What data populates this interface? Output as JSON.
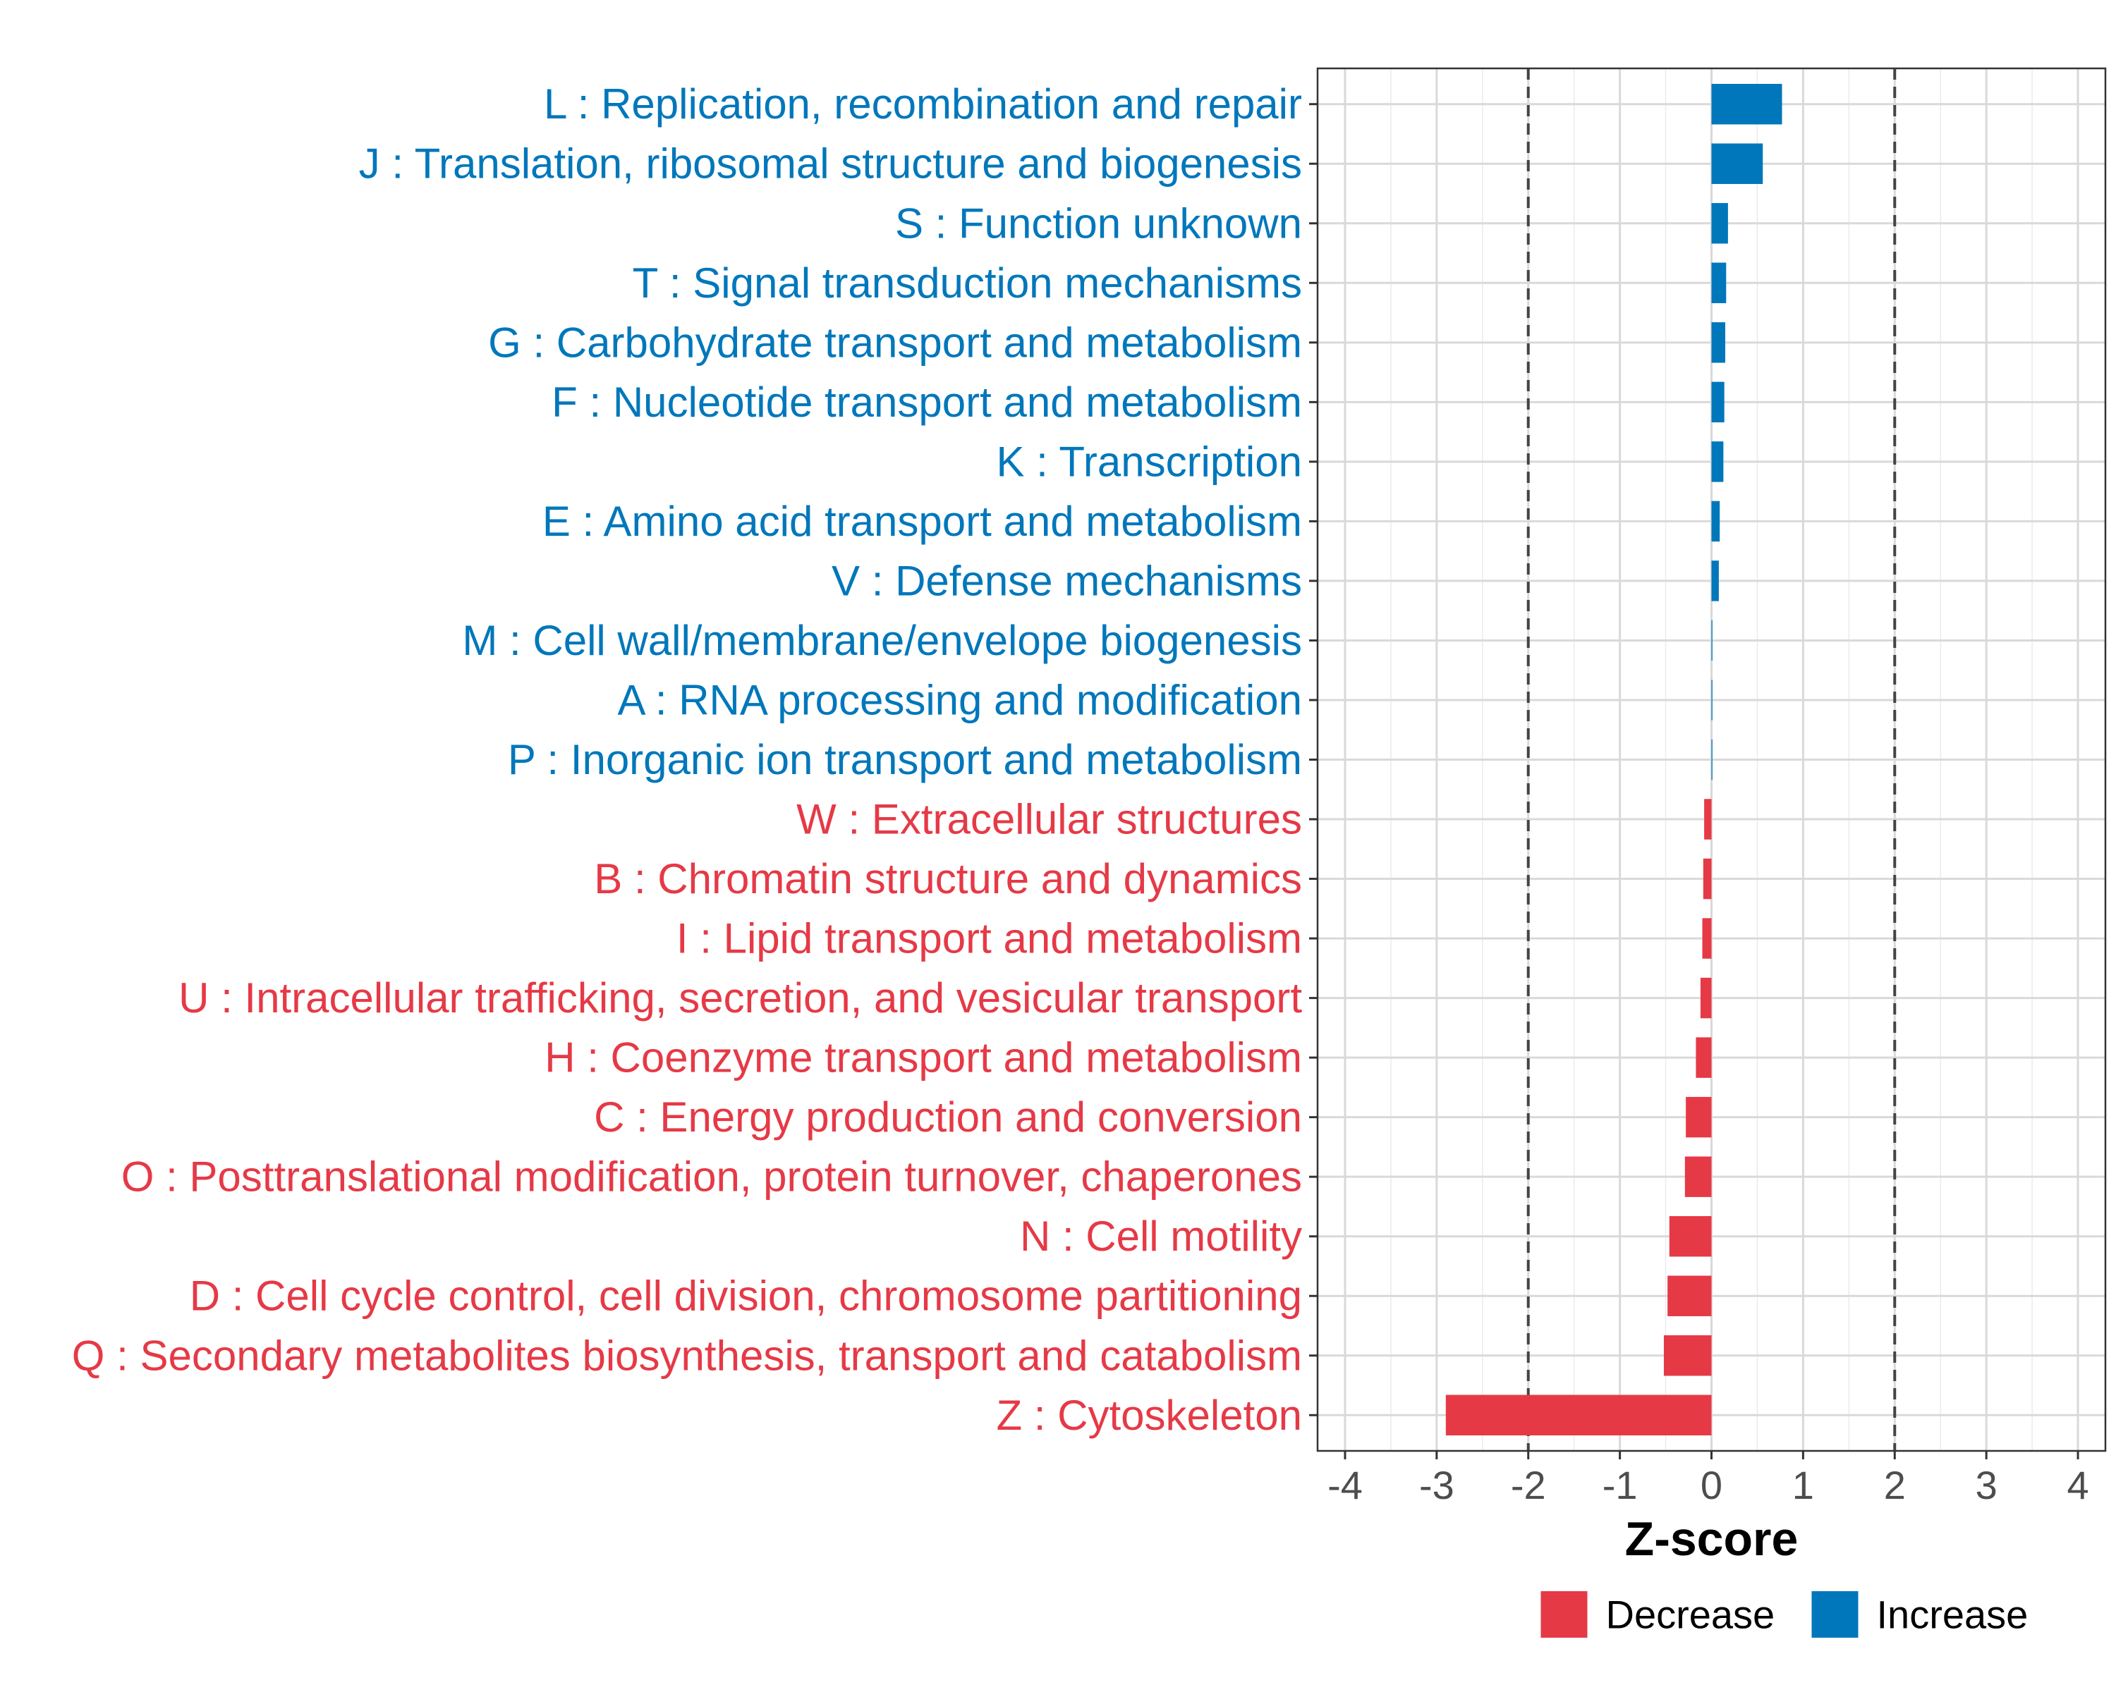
{
  "chart_data": {
    "type": "bar",
    "orientation": "horizontal",
    "xlabel": "Z-score",
    "xlim": [
      -4.3,
      4.3
    ],
    "xticks": [
      -4,
      -3,
      -2,
      -1,
      0,
      1,
      2,
      3,
      4
    ],
    "xtick_labels": [
      "-4",
      "-3",
      "-2",
      "-1",
      "0",
      "1",
      "2",
      "3",
      "4"
    ],
    "reference_lines": [
      -2,
      2
    ],
    "grid": true,
    "legend_position": "bottom",
    "colors": {
      "Decrease": "#e63946",
      "Increase": "#0077bb"
    },
    "categories": [
      "L : Replication, recombination and repair",
      "J : Translation, ribosomal structure and biogenesis",
      "S : Function unknown",
      "T : Signal transduction mechanisms",
      "G : Carbohydrate transport and metabolism",
      "F : Nucleotide transport and metabolism",
      "K : Transcription",
      "E : Amino acid transport and metabolism",
      "V : Defense mechanisms",
      "M : Cell wall/membrane/envelope biogenesis",
      "A : RNA processing and modification",
      "P : Inorganic ion transport and metabolism",
      "W : Extracellular structures",
      "B : Chromatin structure and dynamics",
      "I : Lipid transport and metabolism",
      "U : Intracellular trafficking, secretion, and vesicular transport",
      "H : Coenzyme transport and metabolism",
      "C : Energy production and conversion",
      "O : Posttranslational modification, protein turnover, chaperones",
      "N : Cell motility",
      "D : Cell cycle control, cell division, chromosome partitioning",
      "Q : Secondary metabolites biosynthesis, transport and catabolism",
      "Z : Cytoskeleton"
    ],
    "values": [
      0.77,
      0.56,
      0.18,
      0.16,
      0.15,
      0.14,
      0.13,
      0.09,
      0.08,
      0.01,
      0.01,
      0.01,
      -0.08,
      -0.09,
      -0.1,
      -0.12,
      -0.17,
      -0.28,
      -0.29,
      -0.46,
      -0.48,
      -0.52,
      -2.9
    ],
    "groups": [
      "Increase",
      "Increase",
      "Increase",
      "Increase",
      "Increase",
      "Increase",
      "Increase",
      "Increase",
      "Increase",
      "Increase",
      "Increase",
      "Increase",
      "Decrease",
      "Decrease",
      "Decrease",
      "Decrease",
      "Decrease",
      "Decrease",
      "Decrease",
      "Decrease",
      "Decrease",
      "Decrease",
      "Decrease"
    ],
    "legend": [
      "Decrease",
      "Increase"
    ]
  }
}
